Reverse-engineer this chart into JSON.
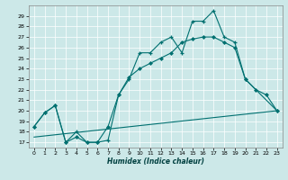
{
  "xlabel": "Humidex (Indice chaleur)",
  "bg_color": "#cce8e8",
  "line_color": "#007070",
  "xlim": [
    -0.5,
    23.5
  ],
  "ylim": [
    16.5,
    30.0
  ],
  "yticks": [
    17,
    18,
    19,
    20,
    21,
    22,
    23,
    24,
    25,
    26,
    27,
    28,
    29
  ],
  "xticks": [
    0,
    1,
    2,
    3,
    4,
    5,
    6,
    7,
    8,
    9,
    10,
    11,
    12,
    13,
    14,
    15,
    16,
    17,
    18,
    19,
    20,
    21,
    22,
    23
  ],
  "series1_x": [
    0,
    1,
    2,
    3,
    4,
    5,
    6,
    7,
    8,
    9,
    10,
    11,
    12,
    13,
    14,
    15,
    16,
    17,
    18,
    19,
    20,
    23
  ],
  "series1_y": [
    18.5,
    19.8,
    20.5,
    17.0,
    18.0,
    17.0,
    17.0,
    17.2,
    21.5,
    23.0,
    25.5,
    25.5,
    26.5,
    27.0,
    25.5,
    28.5,
    28.5,
    29.5,
    27.0,
    26.5,
    23.0,
    20.0
  ],
  "series2_x": [
    0,
    1,
    2,
    3,
    4,
    5,
    6,
    7,
    8,
    9,
    10,
    11,
    12,
    13,
    14,
    15,
    16,
    17,
    18,
    19,
    20,
    21,
    22,
    23
  ],
  "series2_y": [
    18.5,
    19.8,
    20.5,
    17.0,
    17.5,
    17.0,
    17.0,
    18.5,
    21.5,
    23.2,
    24.0,
    24.5,
    25.0,
    25.5,
    26.5,
    26.8,
    27.0,
    27.0,
    26.5,
    26.0,
    23.0,
    22.0,
    21.5,
    20.0
  ],
  "series3_x": [
    0,
    23
  ],
  "series3_y": [
    17.5,
    20.0
  ]
}
